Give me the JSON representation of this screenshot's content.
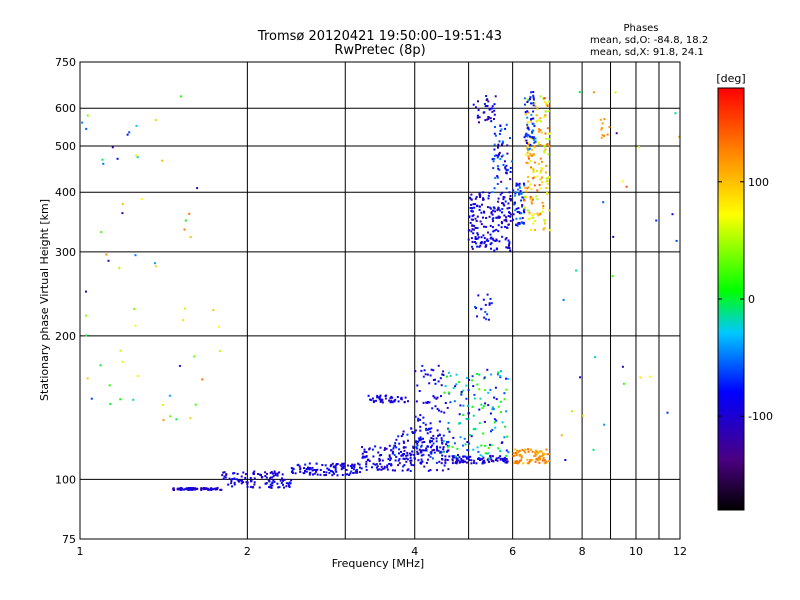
{
  "chart_data": {
    "type": "scatter",
    "title": "Tromsø 20120421 19:50:00–19:51:43",
    "subtitle": "RwPretec (8p)",
    "xlabel": "Frequency [MHz]",
    "ylabel": "Stationary phase Virtual Height [km]",
    "x_scale": "log",
    "y_scale": "log",
    "xlim": [
      1,
      12
    ],
    "ylim": [
      75,
      750
    ],
    "x_ticks": [
      1,
      2,
      4,
      6,
      8,
      10,
      12
    ],
    "x_minor_ticks": [
      3,
      5,
      7,
      9,
      11
    ],
    "y_ticks": [
      75,
      100,
      200,
      300,
      400,
      500,
      600,
      750
    ],
    "grid": true,
    "phases_box": {
      "title": "Phases",
      "line1": "mean, sd,O: -84.8, 18.2",
      "line2": "mean, sd,X:  91.8, 24.1"
    },
    "colorbar": {
      "label": "[deg]",
      "range": [
        -180,
        180
      ],
      "ticks": [
        100,
        0,
        -100
      ],
      "colormap": "rainbow (black→purple→blue→cyan→green→yellow→orange→red)"
    },
    "series": [
      {
        "clusters": [
          {
            "x0": 1.47,
            "x1": 1.8,
            "y0": 95,
            "y1": 96,
            "ph0": -120,
            "ph1": -80,
            "n": 70
          },
          {
            "x0": 1.8,
            "x1": 2.4,
            "y0": 96,
            "y1": 104,
            "ph0": -115,
            "ph1": -75,
            "n": 110
          },
          {
            "x0": 2.4,
            "x1": 3.2,
            "y0": 102,
            "y1": 108,
            "ph0": -115,
            "ph1": -70,
            "n": 110
          },
          {
            "x0": 3.2,
            "x1": 4.6,
            "y0": 104,
            "y1": 118,
            "ph0": -120,
            "ph1": -70,
            "n": 150
          },
          {
            "x0": 3.6,
            "x1": 4.6,
            "y0": 110,
            "y1": 128,
            "ph0": -110,
            "ph1": -60,
            "n": 90
          },
          {
            "x0": 4.6,
            "x1": 5.9,
            "y0": 108,
            "y1": 112,
            "ph0": -120,
            "ph1": -70,
            "n": 90
          },
          {
            "x0": 4.5,
            "x1": 5.9,
            "y0": 110,
            "y1": 170,
            "ph0": -115,
            "ph1": 30,
            "n": 150
          },
          {
            "x0": 4.0,
            "x1": 4.5,
            "y0": 115,
            "y1": 178,
            "ph0": -110,
            "ph1": -70,
            "n": 70
          },
          {
            "x0": 3.3,
            "x1": 3.9,
            "y0": 145,
            "y1": 150,
            "ph0": -110,
            "ph1": -80,
            "n": 45
          },
          {
            "x0": 6.0,
            "x1": 7.0,
            "y0": 108,
            "y1": 116,
            "ph0": 100,
            "ph1": 140,
            "n": 80
          },
          {
            "x0": 5.0,
            "x1": 6.0,
            "y0": 300,
            "y1": 400,
            "ph0": -120,
            "ph1": -70,
            "n": 200
          },
          {
            "x0": 5.5,
            "x1": 6.0,
            "y0": 400,
            "y1": 560,
            "ph0": -120,
            "ph1": -40,
            "n": 60
          },
          {
            "x0": 5.1,
            "x1": 5.6,
            "y0": 560,
            "y1": 640,
            "ph0": -130,
            "ph1": -70,
            "n": 35
          },
          {
            "x0": 6.0,
            "x1": 6.3,
            "y0": 340,
            "y1": 420,
            "ph0": -110,
            "ph1": -40,
            "n": 55
          },
          {
            "x0": 6.3,
            "x1": 7.0,
            "y0": 330,
            "y1": 640,
            "ph0": 40,
            "ph1": 145,
            "n": 170
          },
          {
            "x0": 6.3,
            "x1": 6.6,
            "y0": 480,
            "y1": 650,
            "ph0": -110,
            "ph1": -40,
            "n": 55
          },
          {
            "x0": 5.1,
            "x1": 5.6,
            "y0": 215,
            "y1": 245,
            "ph0": -120,
            "ph1": -60,
            "n": 18
          },
          {
            "x0": 1.0,
            "x1": 1.8,
            "y0": 130,
            "y1": 650,
            "ph0": -130,
            "ph1": 140,
            "n": 60
          },
          {
            "x0": 7.0,
            "x1": 12.0,
            "y0": 100,
            "y1": 650,
            "ph0": -130,
            "ph1": 150,
            "n": 30
          },
          {
            "x0": 8.6,
            "x1": 9.0,
            "y0": 520,
            "y1": 570,
            "ph0": 110,
            "ph1": 140,
            "n": 10
          }
        ]
      }
    ]
  }
}
